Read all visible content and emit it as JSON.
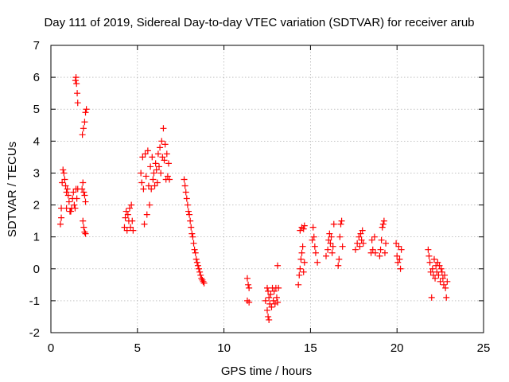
{
  "chart_data": {
    "type": "scatter",
    "title": "Day 111 of 2019, Sidereal Day-to-day VTEC variation (SDTVAR) for receiver arub",
    "xlabel": "GPS time / hours",
    "ylabel": "SDTVAR / TECUs",
    "xlim": [
      0,
      25
    ],
    "ylim": [
      -2,
      7
    ],
    "xticks": [
      0,
      5,
      10,
      15,
      20,
      25
    ],
    "yticks": [
      -2,
      -1,
      0,
      1,
      2,
      3,
      4,
      5,
      6,
      7
    ],
    "grid": true,
    "marker": "+",
    "color": "#ff0000",
    "series": [
      {
        "name": "SDTVAR",
        "points": [
          [
            0.55,
            1.4
          ],
          [
            0.6,
            1.6
          ],
          [
            0.6,
            1.9
          ],
          [
            0.65,
            2.7
          ],
          [
            0.7,
            3.1
          ],
          [
            0.75,
            3.0
          ],
          [
            0.8,
            2.8
          ],
          [
            0.85,
            2.6
          ],
          [
            0.9,
            2.4
          ],
          [
            0.9,
            1.9
          ],
          [
            0.95,
            2.5
          ],
          [
            1.0,
            2.3
          ],
          [
            1.05,
            2.1
          ],
          [
            1.1,
            1.8
          ],
          [
            1.15,
            1.8
          ],
          [
            1.2,
            1.9
          ],
          [
            1.25,
            2.2
          ],
          [
            1.3,
            2.4
          ],
          [
            1.35,
            2.0
          ],
          [
            1.4,
            1.9
          ],
          [
            1.45,
            2.5
          ],
          [
            1.5,
            2.2
          ],
          [
            1.55,
            2.5
          ],
          [
            1.42,
            5.9
          ],
          [
            1.45,
            6.0
          ],
          [
            1.48,
            5.8
          ],
          [
            1.52,
            5.5
          ],
          [
            1.55,
            5.2
          ],
          [
            1.8,
            2.5
          ],
          [
            1.85,
            1.5
          ],
          [
            1.9,
            1.3
          ],
          [
            1.95,
            1.15
          ],
          [
            2.0,
            1.1
          ],
          [
            1.82,
            4.2
          ],
          [
            1.88,
            4.4
          ],
          [
            1.95,
            4.6
          ],
          [
            2.0,
            4.9
          ],
          [
            2.05,
            5.0
          ],
          [
            1.85,
            2.7
          ],
          [
            1.9,
            2.4
          ],
          [
            1.95,
            2.3
          ],
          [
            2.0,
            2.1
          ],
          [
            4.25,
            1.3
          ],
          [
            4.3,
            1.6
          ],
          [
            4.35,
            1.8
          ],
          [
            4.4,
            1.2
          ],
          [
            4.45,
            1.7
          ],
          [
            4.5,
            1.5
          ],
          [
            4.55,
            1.9
          ],
          [
            4.6,
            1.3
          ],
          [
            4.65,
            2.0
          ],
          [
            4.7,
            1.5
          ],
          [
            4.75,
            1.2
          ],
          [
            5.2,
            3.0
          ],
          [
            5.25,
            2.7
          ],
          [
            5.3,
            3.5
          ],
          [
            5.35,
            2.5
          ],
          [
            5.4,
            1.4
          ],
          [
            5.45,
            3.6
          ],
          [
            5.5,
            2.9
          ],
          [
            5.55,
            1.7
          ],
          [
            5.6,
            3.7
          ],
          [
            5.65,
            2.6
          ],
          [
            5.7,
            2.0
          ],
          [
            5.75,
            3.2
          ],
          [
            5.8,
            2.5
          ],
          [
            5.85,
            3.5
          ],
          [
            5.9,
            2.8
          ],
          [
            5.95,
            3.0
          ],
          [
            6.0,
            2.6
          ],
          [
            6.05,
            3.3
          ],
          [
            6.1,
            3.1
          ],
          [
            6.15,
            2.7
          ],
          [
            6.2,
            3.6
          ],
          [
            6.25,
            3.2
          ],
          [
            6.3,
            3.8
          ],
          [
            6.35,
            3.0
          ],
          [
            6.4,
            4.0
          ],
          [
            6.45,
            3.5
          ],
          [
            6.5,
            4.4
          ],
          [
            6.55,
            3.4
          ],
          [
            6.6,
            3.9
          ],
          [
            6.65,
            2.8
          ],
          [
            6.7,
            3.6
          ],
          [
            6.75,
            2.9
          ],
          [
            6.8,
            3.3
          ],
          [
            6.85,
            2.8
          ],
          [
            7.7,
            2.8
          ],
          [
            7.75,
            2.6
          ],
          [
            7.8,
            2.4
          ],
          [
            7.85,
            2.2
          ],
          [
            7.9,
            2.0
          ],
          [
            7.95,
            1.8
          ],
          [
            8.0,
            1.7
          ],
          [
            8.05,
            1.5
          ],
          [
            8.1,
            1.3
          ],
          [
            8.15,
            1.1
          ],
          [
            8.2,
            1.0
          ],
          [
            8.25,
            0.8
          ],
          [
            8.3,
            0.6
          ],
          [
            8.35,
            0.5
          ],
          [
            8.4,
            0.3
          ],
          [
            8.45,
            0.2
          ],
          [
            8.5,
            0.1
          ],
          [
            8.55,
            0.0
          ],
          [
            8.6,
            -0.1
          ],
          [
            8.65,
            -0.2
          ],
          [
            8.7,
            -0.3
          ],
          [
            8.75,
            -0.35
          ],
          [
            8.8,
            -0.4
          ],
          [
            8.85,
            -0.45
          ],
          [
            11.35,
            -0.3
          ],
          [
            11.4,
            -0.5
          ],
          [
            11.45,
            -0.6
          ],
          [
            11.35,
            -1.0
          ],
          [
            11.45,
            -1.05
          ],
          [
            12.4,
            -1.0
          ],
          [
            12.5,
            -1.3
          ],
          [
            12.55,
            -1.5
          ],
          [
            12.6,
            -1.6
          ],
          [
            12.5,
            -0.6
          ],
          [
            12.55,
            -0.7
          ],
          [
            12.6,
            -0.9
          ],
          [
            12.65,
            -1.1
          ],
          [
            12.7,
            -0.8
          ],
          [
            12.75,
            -1.2
          ],
          [
            12.8,
            -0.6
          ],
          [
            12.85,
            -1.0
          ],
          [
            12.9,
            -0.7
          ],
          [
            12.95,
            -1.1
          ],
          [
            13.0,
            -0.6
          ],
          [
            13.05,
            -0.9
          ],
          [
            13.1,
            -1.05
          ],
          [
            13.15,
            -0.6
          ],
          [
            13.1,
            0.1
          ],
          [
            14.3,
            -0.5
          ],
          [
            14.35,
            -0.2
          ],
          [
            14.4,
            0.0
          ],
          [
            14.45,
            0.3
          ],
          [
            14.5,
            0.5
          ],
          [
            14.55,
            0.7
          ],
          [
            14.6,
            -0.1
          ],
          [
            14.65,
            0.2
          ],
          [
            14.4,
            1.2
          ],
          [
            14.5,
            1.3
          ],
          [
            14.6,
            1.25
          ],
          [
            14.65,
            1.35
          ],
          [
            15.1,
            0.9
          ],
          [
            15.15,
            1.3
          ],
          [
            15.2,
            1.0
          ],
          [
            15.25,
            0.7
          ],
          [
            15.3,
            0.5
          ],
          [
            15.4,
            0.2
          ],
          [
            15.9,
            0.4
          ],
          [
            16.0,
            0.6
          ],
          [
            16.05,
            0.9
          ],
          [
            16.1,
            1.1
          ],
          [
            16.15,
            0.8
          ],
          [
            16.2,
            1.0
          ],
          [
            16.25,
            0.5
          ],
          [
            16.3,
            0.7
          ],
          [
            16.35,
            1.4
          ],
          [
            16.6,
            0.1
          ],
          [
            16.65,
            0.3
          ],
          [
            16.7,
            1.0
          ],
          [
            16.75,
            1.4
          ],
          [
            16.8,
            1.5
          ],
          [
            16.85,
            0.7
          ],
          [
            17.6,
            0.6
          ],
          [
            17.7,
            0.8
          ],
          [
            17.8,
            1.0
          ],
          [
            17.85,
            0.7
          ],
          [
            17.9,
            1.1
          ],
          [
            17.95,
            0.9
          ],
          [
            18.0,
            1.2
          ],
          [
            18.05,
            0.8
          ],
          [
            18.5,
            0.5
          ],
          [
            18.55,
            0.9
          ],
          [
            18.6,
            0.6
          ],
          [
            18.7,
            1.0
          ],
          [
            18.75,
            0.5
          ],
          [
            19.0,
            0.4
          ],
          [
            19.05,
            0.6
          ],
          [
            19.1,
            0.9
          ],
          [
            19.15,
            1.3
          ],
          [
            19.2,
            1.4
          ],
          [
            19.25,
            1.5
          ],
          [
            19.3,
            0.5
          ],
          [
            19.35,
            0.8
          ],
          [
            19.95,
            0.8
          ],
          [
            20.0,
            0.4
          ],
          [
            20.05,
            0.2
          ],
          [
            20.1,
            0.7
          ],
          [
            20.15,
            0.3
          ],
          [
            20.2,
            0.0
          ],
          [
            20.25,
            0.6
          ],
          [
            21.8,
            0.6
          ],
          [
            21.85,
            0.4
          ],
          [
            21.9,
            0.2
          ],
          [
            21.95,
            -0.1
          ],
          [
            22.0,
            -0.9
          ],
          [
            22.05,
            0.0
          ],
          [
            22.1,
            -0.2
          ],
          [
            22.15,
            0.3
          ],
          [
            22.2,
            -0.3
          ],
          [
            22.25,
            0.1
          ],
          [
            22.3,
            -0.1
          ],
          [
            22.35,
            0.2
          ],
          [
            22.4,
            -0.2
          ],
          [
            22.45,
            0.1
          ],
          [
            22.5,
            -0.4
          ],
          [
            22.55,
            0.0
          ],
          [
            22.6,
            -0.1
          ],
          [
            22.65,
            -0.3
          ],
          [
            22.7,
            -0.5
          ],
          [
            22.75,
            -0.2
          ],
          [
            22.8,
            -0.6
          ],
          [
            22.85,
            -0.9
          ],
          [
            22.9,
            -0.4
          ]
        ]
      }
    ]
  }
}
